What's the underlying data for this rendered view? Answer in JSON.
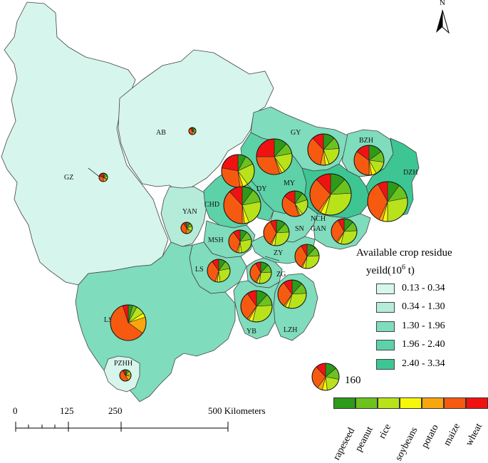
{
  "map": {
    "north_label": "N",
    "legend": {
      "title_line1": "Available crop residue",
      "title_line2_prefix": "yeild(10",
      "title_line2_sup": "6",
      "title_line2_suffix": " t)",
      "classes": [
        {
          "label": "0.13 - 0.34",
          "color": "#d6f5ec"
        },
        {
          "label": "0.34 - 1.30",
          "color": "#b4ecd9"
        },
        {
          "label": "1.30 - 1.96",
          "color": "#7fdcbc"
        },
        {
          "label": "1.96 - 2.40",
          "color": "#5dd1a8"
        },
        {
          "label": "2.40 - 3.34",
          "color": "#3ec594"
        }
      ]
    },
    "crops": [
      {
        "name": "rapeseed",
        "color": "#2e9a1a"
      },
      {
        "name": "peanut",
        "color": "#6cc21e"
      },
      {
        "name": "rice",
        "color": "#b8e21a"
      },
      {
        "name": "soybeans",
        "color": "#f7f70a"
      },
      {
        "name": "potato",
        "color": "#f9a50e"
      },
      {
        "name": "maize",
        "color": "#f65a10"
      },
      {
        "name": "wheat",
        "color": "#f01212"
      }
    ],
    "pie_size_label": "160",
    "scale_bar": {
      "ticks": [
        "0",
        "125",
        "250"
      ],
      "end_label": "500 Kilometers"
    },
    "regions": [
      "GZ",
      "AB",
      "GY",
      "BZH",
      "DZH",
      "MY",
      "DY",
      "CHD",
      "YAN",
      "NCH",
      "SN",
      "GAN",
      "MSH",
      "ZY",
      "LS",
      "ZG",
      "LSH",
      "YB",
      "LZH",
      "PZHH"
    ]
  }
}
